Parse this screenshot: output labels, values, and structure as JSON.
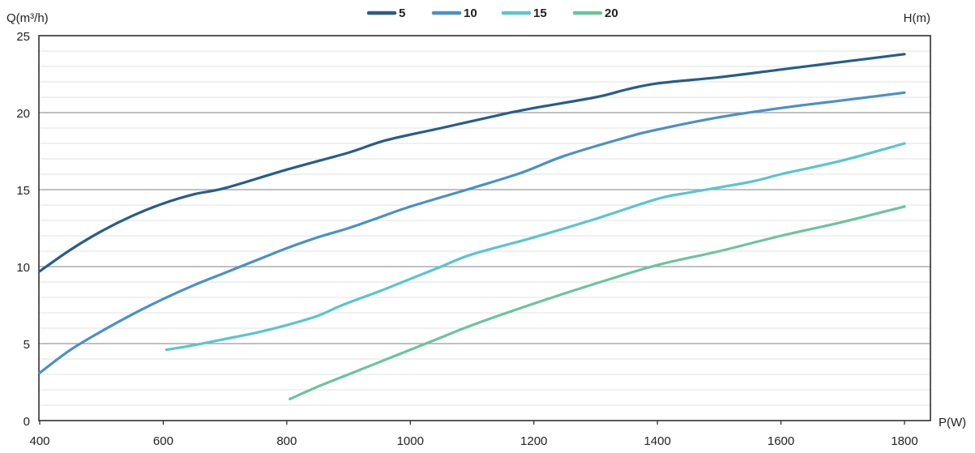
{
  "chart_data": {
    "type": "line",
    "title": "",
    "ylabel": "Q(m³/h)",
    "xlabel": "P(W)",
    "legend_title": "H(m)",
    "legend_position": "top-center",
    "xlim": [
      400,
      1850
    ],
    "ylim": [
      0,
      25
    ],
    "x_ticks": [
      400,
      600,
      800,
      1000,
      1200,
      1400,
      1600,
      1800
    ],
    "y_ticks": [
      0,
      5,
      10,
      15,
      20,
      25
    ],
    "y_minor_step": 1,
    "grid": true,
    "series": [
      {
        "name": "5",
        "color": "#275d8a",
        "points": [
          [
            400,
            9.7
          ],
          [
            450,
            11.1
          ],
          [
            500,
            12.3
          ],
          [
            550,
            13.3
          ],
          [
            600,
            14.1
          ],
          [
            650,
            14.7
          ],
          [
            700,
            15.1
          ],
          [
            800,
            16.3
          ],
          [
            900,
            17.4
          ],
          [
            960,
            18.2
          ],
          [
            1050,
            19.0
          ],
          [
            1150,
            19.9
          ],
          [
            1200,
            20.3
          ],
          [
            1300,
            21.0
          ],
          [
            1350,
            21.5
          ],
          [
            1400,
            21.9
          ],
          [
            1500,
            22.3
          ],
          [
            1600,
            22.8
          ],
          [
            1700,
            23.3
          ],
          [
            1800,
            23.8
          ]
        ]
      },
      {
        "name": "10",
        "color": "#4a90c8",
        "points": [
          [
            400,
            3.1
          ],
          [
            450,
            4.6
          ],
          [
            500,
            5.8
          ],
          [
            550,
            6.9
          ],
          [
            600,
            7.9
          ],
          [
            650,
            8.8
          ],
          [
            700,
            9.6
          ],
          [
            750,
            10.4
          ],
          [
            800,
            11.2
          ],
          [
            850,
            11.9
          ],
          [
            900,
            12.5
          ],
          [
            950,
            13.2
          ],
          [
            1000,
            13.9
          ],
          [
            1100,
            15.1
          ],
          [
            1180,
            16.1
          ],
          [
            1250,
            17.2
          ],
          [
            1350,
            18.4
          ],
          [
            1400,
            18.9
          ],
          [
            1500,
            19.7
          ],
          [
            1600,
            20.3
          ],
          [
            1700,
            20.8
          ],
          [
            1800,
            21.3
          ]
        ]
      },
      {
        "name": "15",
        "color": "#5ac5cc",
        "points": [
          [
            605,
            4.6
          ],
          [
            650,
            4.9
          ],
          [
            700,
            5.3
          ],
          [
            750,
            5.7
          ],
          [
            800,
            6.2
          ],
          [
            850,
            6.8
          ],
          [
            890,
            7.5
          ],
          [
            950,
            8.4
          ],
          [
            1000,
            9.2
          ],
          [
            1050,
            10.0
          ],
          [
            1100,
            10.8
          ],
          [
            1200,
            11.9
          ],
          [
            1300,
            13.1
          ],
          [
            1400,
            14.4
          ],
          [
            1450,
            14.8
          ],
          [
            1550,
            15.5
          ],
          [
            1600,
            16.0
          ],
          [
            1700,
            16.9
          ],
          [
            1800,
            18.0
          ]
        ]
      },
      {
        "name": "20",
        "color": "#6cc3a0",
        "points": [
          [
            805,
            1.4
          ],
          [
            850,
            2.2
          ],
          [
            900,
            3.0
          ],
          [
            950,
            3.8
          ],
          [
            1000,
            4.6
          ],
          [
            1050,
            5.4
          ],
          [
            1100,
            6.2
          ],
          [
            1200,
            7.6
          ],
          [
            1300,
            8.9
          ],
          [
            1400,
            10.1
          ],
          [
            1500,
            11.0
          ],
          [
            1600,
            12.0
          ],
          [
            1700,
            12.9
          ],
          [
            1800,
            13.9
          ]
        ]
      }
    ]
  }
}
